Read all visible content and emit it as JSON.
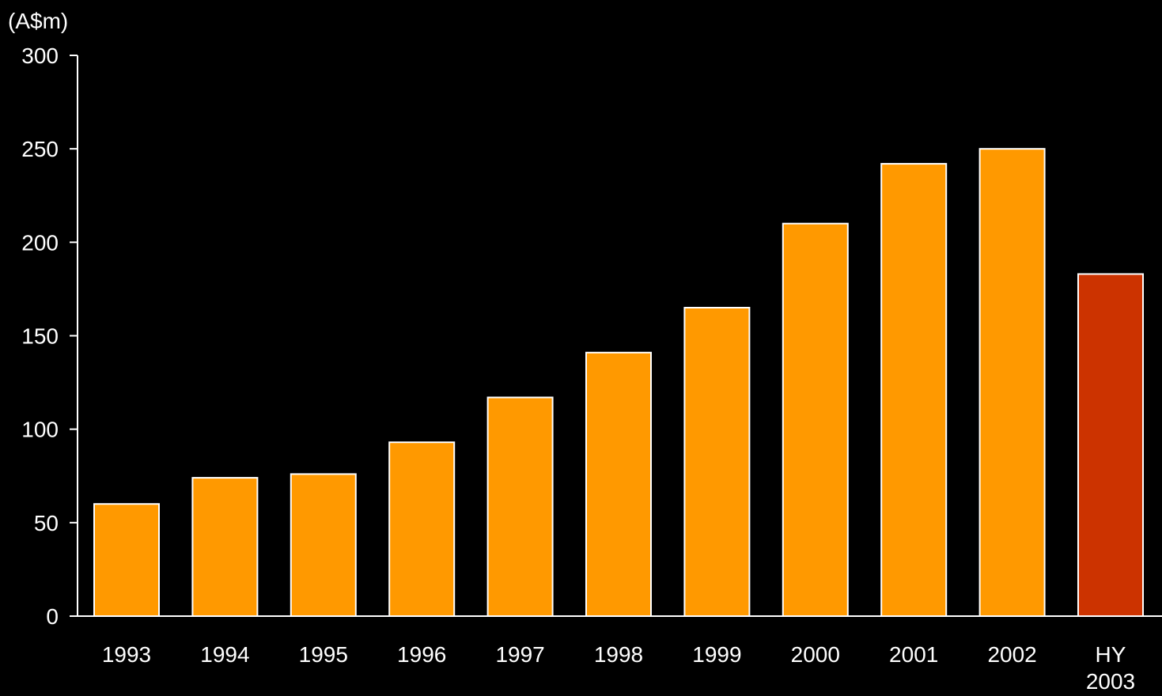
{
  "chart_data": {
    "type": "bar",
    "unit_label": "(A$m)",
    "categories": [
      [
        "1993"
      ],
      [
        "1994"
      ],
      [
        "1995"
      ],
      [
        "1996"
      ],
      [
        "1997"
      ],
      [
        "1998"
      ],
      [
        "1999"
      ],
      [
        "2000"
      ],
      [
        "2001"
      ],
      [
        "2002"
      ],
      [
        "HY",
        "2003"
      ]
    ],
    "values": [
      60,
      74,
      76,
      93,
      117,
      141,
      165,
      210,
      242,
      250,
      183
    ],
    "bar_colors": [
      "#FF9900",
      "#FF9900",
      "#FF9900",
      "#FF9900",
      "#FF9900",
      "#FF9900",
      "#FF9900",
      "#FF9900",
      "#FF9900",
      "#FF9900",
      "#CC3300"
    ],
    "ylim": [
      0,
      300
    ],
    "yticks": [
      0,
      50,
      100,
      150,
      200,
      250,
      300
    ],
    "ytick_labels": [
      "0",
      "50",
      "100",
      "150",
      "200",
      "250",
      "300"
    ],
    "grid": false,
    "legend": "none",
    "background": "#000000",
    "text_color": "#FFFFFF"
  }
}
